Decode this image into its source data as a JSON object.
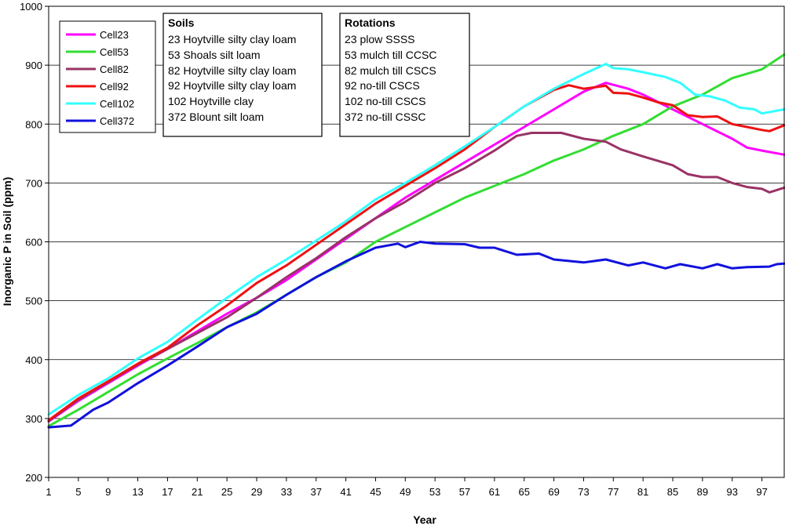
{
  "chart_data": {
    "type": "line",
    "title": "",
    "xlabel": "Year",
    "ylabel": "Inorganic P in Soil (ppm)",
    "xlim": [
      1,
      100
    ],
    "ylim": [
      200,
      1000
    ],
    "ytick_values": [
      200,
      300,
      400,
      500,
      600,
      700,
      800,
      900,
      1000
    ],
    "ytick_labels": [
      "200",
      "300",
      "400",
      "500",
      "600",
      "700",
      "800",
      "900",
      "1000"
    ],
    "xtick_values": [
      1,
      5,
      9,
      13,
      17,
      21,
      25,
      29,
      33,
      37,
      41,
      45,
      49,
      53,
      57,
      61,
      65,
      69,
      73,
      77,
      81,
      85,
      89,
      93,
      97
    ],
    "xtick_labels": [
      "1",
      "5",
      "9",
      "13",
      "17",
      "21",
      "25",
      "29",
      "33",
      "37",
      "41",
      "45",
      "49",
      "53",
      "57",
      "61",
      "65",
      "69",
      "73",
      "77",
      "81",
      "85",
      "89",
      "93",
      "97"
    ],
    "grid": "horizontal",
    "legend_position": "top-left",
    "series": [
      {
        "name": "Cell23",
        "color": "#ff00ff",
        "points": [
          [
            1,
            295
          ],
          [
            5,
            330
          ],
          [
            9,
            360
          ],
          [
            13,
            390
          ],
          [
            17,
            418
          ],
          [
            21,
            448
          ],
          [
            25,
            478
          ],
          [
            29,
            505
          ],
          [
            33,
            535
          ],
          [
            37,
            570
          ],
          [
            41,
            605
          ],
          [
            45,
            640
          ],
          [
            49,
            675
          ],
          [
            53,
            705
          ],
          [
            57,
            735
          ],
          [
            61,
            765
          ],
          [
            65,
            795
          ],
          [
            69,
            825
          ],
          [
            73,
            855
          ],
          [
            76,
            870
          ],
          [
            79,
            860
          ],
          [
            81,
            850
          ],
          [
            85,
            825
          ],
          [
            89,
            800
          ],
          [
            93,
            775
          ],
          [
            95,
            760
          ],
          [
            97,
            755
          ],
          [
            100,
            748
          ]
        ]
      },
      {
        "name": "Cell53",
        "color": "#33dd33",
        "points": [
          [
            1,
            287
          ],
          [
            5,
            315
          ],
          [
            9,
            345
          ],
          [
            13,
            375
          ],
          [
            17,
            402
          ],
          [
            21,
            428
          ],
          [
            25,
            455
          ],
          [
            29,
            480
          ],
          [
            33,
            510
          ],
          [
            37,
            540
          ],
          [
            41,
            565
          ],
          [
            45,
            600
          ],
          [
            49,
            625
          ],
          [
            53,
            650
          ],
          [
            57,
            675
          ],
          [
            61,
            695
          ],
          [
            65,
            715
          ],
          [
            69,
            738
          ],
          [
            73,
            757
          ],
          [
            77,
            780
          ],
          [
            81,
            800
          ],
          [
            85,
            830
          ],
          [
            89,
            850
          ],
          [
            93,
            878
          ],
          [
            97,
            893
          ],
          [
            100,
            918
          ]
        ]
      },
      {
        "name": "Cell82",
        "color": "#993366",
        "points": [
          [
            1,
            296
          ],
          [
            5,
            332
          ],
          [
            9,
            362
          ],
          [
            13,
            392
          ],
          [
            17,
            418
          ],
          [
            21,
            445
          ],
          [
            25,
            472
          ],
          [
            29,
            505
          ],
          [
            33,
            540
          ],
          [
            37,
            572
          ],
          [
            41,
            608
          ],
          [
            45,
            640
          ],
          [
            49,
            668
          ],
          [
            53,
            700
          ],
          [
            57,
            725
          ],
          [
            61,
            755
          ],
          [
            64,
            780
          ],
          [
            66,
            785
          ],
          [
            70,
            785
          ],
          [
            73,
            775
          ],
          [
            76,
            770
          ],
          [
            78,
            757
          ],
          [
            81,
            745
          ],
          [
            85,
            730
          ],
          [
            87,
            715
          ],
          [
            89,
            710
          ],
          [
            91,
            710
          ],
          [
            93,
            700
          ],
          [
            95,
            693
          ],
          [
            97,
            690
          ],
          [
            98,
            684
          ],
          [
            100,
            692
          ]
        ]
      },
      {
        "name": "Cell92",
        "color": "#ee1111",
        "points": [
          [
            1,
            297
          ],
          [
            5,
            334
          ],
          [
            9,
            363
          ],
          [
            13,
            393
          ],
          [
            17,
            420
          ],
          [
            21,
            458
          ],
          [
            25,
            492
          ],
          [
            29,
            530
          ],
          [
            33,
            560
          ],
          [
            37,
            595
          ],
          [
            41,
            630
          ],
          [
            45,
            665
          ],
          [
            49,
            695
          ],
          [
            53,
            725
          ],
          [
            57,
            757
          ],
          [
            61,
            795
          ],
          [
            65,
            830
          ],
          [
            69,
            858
          ],
          [
            71,
            866
          ],
          [
            73,
            860
          ],
          [
            76,
            865
          ],
          [
            77,
            853
          ],
          [
            79,
            852
          ],
          [
            81,
            845
          ],
          [
            83,
            837
          ],
          [
            85,
            832
          ],
          [
            87,
            815
          ],
          [
            89,
            812
          ],
          [
            91,
            813
          ],
          [
            93,
            800
          ],
          [
            95,
            795
          ],
          [
            97,
            790
          ],
          [
            98,
            788
          ],
          [
            100,
            798
          ]
        ]
      },
      {
        "name": "Cell102",
        "color": "#33ffff",
        "points": [
          [
            1,
            307
          ],
          [
            5,
            340
          ],
          [
            9,
            368
          ],
          [
            13,
            402
          ],
          [
            17,
            430
          ],
          [
            21,
            468
          ],
          [
            25,
            505
          ],
          [
            29,
            540
          ],
          [
            33,
            570
          ],
          [
            37,
            602
          ],
          [
            41,
            635
          ],
          [
            45,
            672
          ],
          [
            49,
            700
          ],
          [
            53,
            730
          ],
          [
            57,
            762
          ],
          [
            61,
            795
          ],
          [
            65,
            830
          ],
          [
            69,
            860
          ],
          [
            73,
            885
          ],
          [
            76,
            902
          ],
          [
            77,
            895
          ],
          [
            79,
            893
          ],
          [
            81,
            888
          ],
          [
            84,
            880
          ],
          [
            86,
            870
          ],
          [
            88,
            850
          ],
          [
            90,
            847
          ],
          [
            92,
            840
          ],
          [
            94,
            828
          ],
          [
            96,
            825
          ],
          [
            97,
            818
          ],
          [
            100,
            825
          ]
        ]
      },
      {
        "name": "Cell372",
        "color": "#1111dd",
        "points": [
          [
            1,
            285
          ],
          [
            4,
            288
          ],
          [
            5,
            297
          ],
          [
            7,
            315
          ],
          [
            9,
            327
          ],
          [
            13,
            360
          ],
          [
            17,
            390
          ],
          [
            21,
            422
          ],
          [
            25,
            455
          ],
          [
            29,
            478
          ],
          [
            33,
            510
          ],
          [
            37,
            540
          ],
          [
            41,
            567
          ],
          [
            45,
            590
          ],
          [
            48,
            597
          ],
          [
            49,
            591
          ],
          [
            51,
            600
          ],
          [
            53,
            597
          ],
          [
            57,
            596
          ],
          [
            59,
            590
          ],
          [
            61,
            590
          ],
          [
            64,
            578
          ],
          [
            67,
            580
          ],
          [
            69,
            570
          ],
          [
            73,
            565
          ],
          [
            76,
            570
          ],
          [
            79,
            560
          ],
          [
            81,
            565
          ],
          [
            84,
            555
          ],
          [
            86,
            562
          ],
          [
            89,
            555
          ],
          [
            91,
            562
          ],
          [
            93,
            555
          ],
          [
            95,
            557
          ],
          [
            98,
            558
          ],
          [
            99,
            562
          ],
          [
            100,
            563
          ]
        ]
      }
    ]
  },
  "legend": {
    "items": [
      "Cell23",
      "Cell53",
      "Cell82",
      "Cell92",
      "Cell102",
      "Cell372"
    ]
  },
  "soils_box": {
    "title": "Soils",
    "lines": [
      "23 Hoytville silty clay loam",
      "53 Shoals silt loam",
      "82 Hoytville silty clay loam",
      "92 Hoytville silty clay loam",
      "102 Hoytville clay",
      "372 Blount silt loam"
    ]
  },
  "rotations_box": {
    "title": "Rotations",
    "lines": [
      "23 plow SSSS",
      "53 mulch till CCSC",
      "82 mulch till CSCS",
      "92 no-till CSCS",
      "102 no-till CSCS",
      "372 no-till CSSC"
    ]
  }
}
